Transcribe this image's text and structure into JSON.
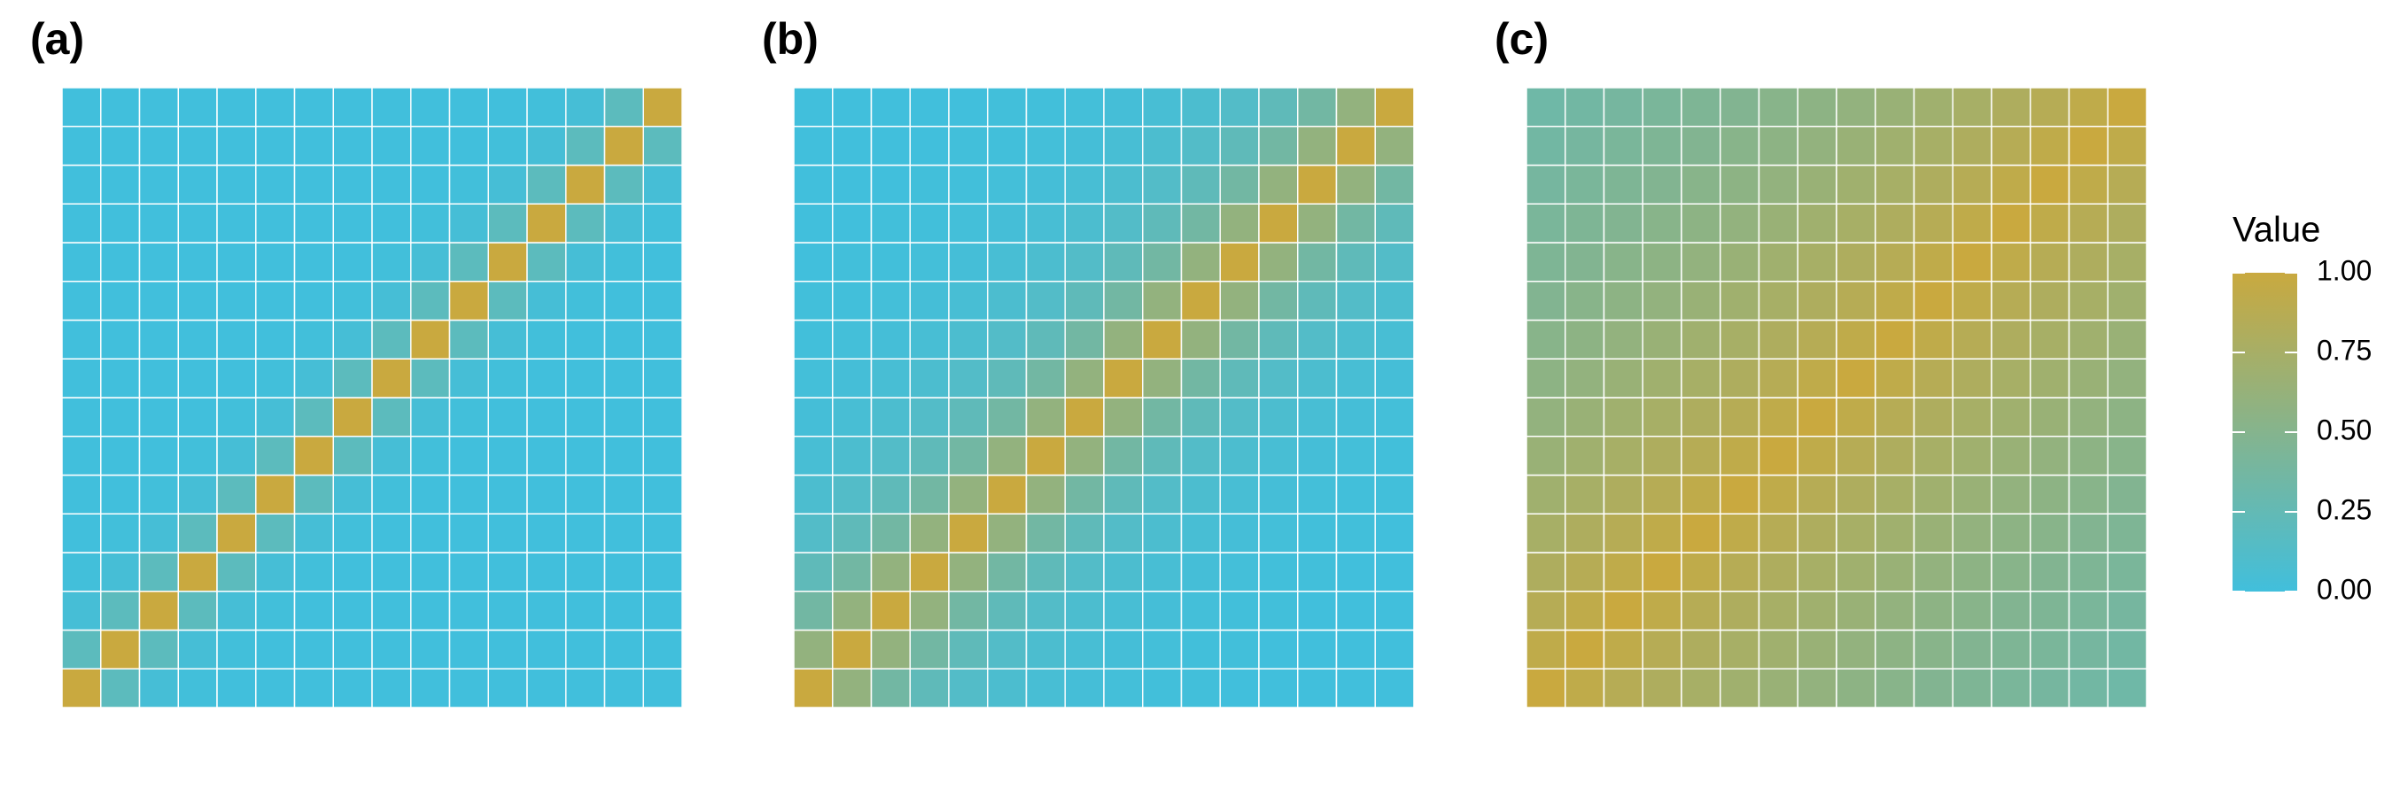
{
  "chart_data": [
    {
      "type": "heatmap",
      "title": "(a)",
      "z": [
        [
          1,
          0.2,
          0.04,
          0.01,
          0,
          0,
          0,
          0,
          0,
          0,
          0,
          0,
          0,
          0,
          0,
          0
        ],
        [
          0.2,
          1,
          0.2,
          0.04,
          0.01,
          0,
          0,
          0,
          0,
          0,
          0,
          0,
          0,
          0,
          0,
          0
        ],
        [
          0.04,
          0.2,
          1,
          0.2,
          0.04,
          0.01,
          0,
          0,
          0,
          0,
          0,
          0,
          0,
          0,
          0,
          0
        ],
        [
          0.01,
          0.04,
          0.2,
          1,
          0.2,
          0.04,
          0.01,
          0,
          0,
          0,
          0,
          0,
          0,
          0,
          0,
          0
        ],
        [
          0,
          0.01,
          0.04,
          0.2,
          1,
          0.2,
          0.04,
          0.01,
          0,
          0,
          0,
          0,
          0,
          0,
          0,
          0
        ],
        [
          0,
          0,
          0.01,
          0.04,
          0.2,
          1,
          0.2,
          0.04,
          0.01,
          0,
          0,
          0,
          0,
          0,
          0,
          0
        ],
        [
          0,
          0,
          0,
          0.01,
          0.04,
          0.2,
          1,
          0.2,
          0.04,
          0.01,
          0,
          0,
          0,
          0,
          0,
          0
        ],
        [
          0,
          0,
          0,
          0,
          0.01,
          0.04,
          0.2,
          1,
          0.2,
          0.04,
          0.01,
          0,
          0,
          0,
          0,
          0
        ],
        [
          0,
          0,
          0,
          0,
          0,
          0.01,
          0.04,
          0.2,
          1,
          0.2,
          0.04,
          0.01,
          0,
          0,
          0,
          0
        ],
        [
          0,
          0,
          0,
          0,
          0,
          0,
          0.01,
          0.04,
          0.2,
          1,
          0.2,
          0.04,
          0.01,
          0,
          0,
          0
        ],
        [
          0,
          0,
          0,
          0,
          0,
          0,
          0,
          0.01,
          0.04,
          0.2,
          1,
          0.2,
          0.04,
          0.01,
          0,
          0
        ],
        [
          0,
          0,
          0,
          0,
          0,
          0,
          0,
          0,
          0.01,
          0.04,
          0.2,
          1,
          0.2,
          0.04,
          0.01,
          0
        ],
        [
          0,
          0,
          0,
          0,
          0,
          0,
          0,
          0,
          0,
          0.01,
          0.04,
          0.2,
          1,
          0.2,
          0.04,
          0.01
        ],
        [
          0,
          0,
          0,
          0,
          0,
          0,
          0,
          0,
          0,
          0,
          0.01,
          0.04,
          0.2,
          1,
          0.2,
          0.04
        ],
        [
          0,
          0,
          0,
          0,
          0,
          0,
          0,
          0,
          0,
          0,
          0,
          0.01,
          0.04,
          0.2,
          1,
          0.2
        ],
        [
          0,
          0,
          0,
          0,
          0,
          0,
          0,
          0,
          0,
          0,
          0,
          0,
          0.01,
          0.04,
          0.2,
          1
        ]
      ]
    },
    {
      "type": "heatmap",
      "title": "(b)",
      "z": [
        [
          1,
          0.6,
          0.36,
          0.22,
          0.13,
          0.08,
          0.05,
          0.03,
          0.02,
          0.01,
          0.01,
          0,
          0,
          0,
          0,
          0
        ],
        [
          0.6,
          1,
          0.6,
          0.36,
          0.22,
          0.13,
          0.08,
          0.05,
          0.03,
          0.02,
          0.01,
          0.01,
          0,
          0,
          0,
          0
        ],
        [
          0.36,
          0.6,
          1,
          0.6,
          0.36,
          0.22,
          0.13,
          0.08,
          0.05,
          0.03,
          0.02,
          0.01,
          0.01,
          0,
          0,
          0
        ],
        [
          0.22,
          0.36,
          0.6,
          1,
          0.6,
          0.36,
          0.22,
          0.13,
          0.08,
          0.05,
          0.03,
          0.02,
          0.01,
          0.01,
          0,
          0
        ],
        [
          0.13,
          0.22,
          0.36,
          0.6,
          1,
          0.6,
          0.36,
          0.22,
          0.13,
          0.08,
          0.05,
          0.03,
          0.02,
          0.01,
          0.01,
          0
        ],
        [
          0.08,
          0.13,
          0.22,
          0.36,
          0.6,
          1,
          0.6,
          0.36,
          0.22,
          0.13,
          0.08,
          0.05,
          0.03,
          0.02,
          0.01,
          0.01
        ],
        [
          0.05,
          0.08,
          0.13,
          0.22,
          0.36,
          0.6,
          1,
          0.6,
          0.36,
          0.22,
          0.13,
          0.08,
          0.05,
          0.03,
          0.02,
          0.01
        ],
        [
          0.03,
          0.05,
          0.08,
          0.13,
          0.22,
          0.36,
          0.6,
          1,
          0.6,
          0.36,
          0.22,
          0.13,
          0.08,
          0.05,
          0.03,
          0.02
        ],
        [
          0.02,
          0.03,
          0.05,
          0.08,
          0.13,
          0.22,
          0.36,
          0.6,
          1,
          0.6,
          0.36,
          0.22,
          0.13,
          0.08,
          0.05,
          0.03
        ],
        [
          0.01,
          0.02,
          0.03,
          0.05,
          0.08,
          0.13,
          0.22,
          0.36,
          0.6,
          1,
          0.6,
          0.36,
          0.22,
          0.13,
          0.08,
          0.05
        ],
        [
          0.01,
          0.01,
          0.02,
          0.03,
          0.05,
          0.08,
          0.13,
          0.22,
          0.36,
          0.6,
          1,
          0.6,
          0.36,
          0.22,
          0.13,
          0.08
        ],
        [
          0,
          0.01,
          0.01,
          0.02,
          0.03,
          0.05,
          0.08,
          0.13,
          0.22,
          0.36,
          0.6,
          1,
          0.6,
          0.36,
          0.22,
          0.13
        ],
        [
          0,
          0,
          0.01,
          0.01,
          0.02,
          0.03,
          0.05,
          0.08,
          0.13,
          0.22,
          0.36,
          0.6,
          1,
          0.6,
          0.36,
          0.22
        ],
        [
          0,
          0,
          0,
          0.01,
          0.01,
          0.02,
          0.03,
          0.05,
          0.08,
          0.13,
          0.22,
          0.36,
          0.6,
          1,
          0.6,
          0.36
        ],
        [
          0,
          0,
          0,
          0,
          0.01,
          0.01,
          0.02,
          0.03,
          0.05,
          0.08,
          0.13,
          0.22,
          0.36,
          0.6,
          1,
          0.6
        ],
        [
          0,
          0,
          0,
          0,
          0,
          0.01,
          0.01,
          0.02,
          0.03,
          0.05,
          0.08,
          0.13,
          0.22,
          0.36,
          0.6,
          1
        ]
      ]
    },
    {
      "type": "heatmap",
      "title": "(c)",
      "z": [
        [
          1,
          0.93,
          0.86,
          0.8,
          0.75,
          0.7,
          0.65,
          0.6,
          0.56,
          0.52,
          0.48,
          0.45,
          0.42,
          0.39,
          0.36,
          0.34
        ],
        [
          0.93,
          1,
          0.93,
          0.86,
          0.8,
          0.75,
          0.7,
          0.65,
          0.6,
          0.56,
          0.52,
          0.48,
          0.45,
          0.42,
          0.39,
          0.36
        ],
        [
          0.86,
          0.93,
          1,
          0.93,
          0.86,
          0.8,
          0.75,
          0.7,
          0.65,
          0.6,
          0.56,
          0.52,
          0.48,
          0.45,
          0.42,
          0.39
        ],
        [
          0.8,
          0.86,
          0.93,
          1,
          0.93,
          0.86,
          0.8,
          0.75,
          0.7,
          0.65,
          0.6,
          0.56,
          0.52,
          0.48,
          0.45,
          0.42
        ],
        [
          0.75,
          0.8,
          0.86,
          0.93,
          1,
          0.93,
          0.86,
          0.8,
          0.75,
          0.7,
          0.65,
          0.6,
          0.56,
          0.52,
          0.48,
          0.45
        ],
        [
          0.7,
          0.75,
          0.8,
          0.86,
          0.93,
          1,
          0.93,
          0.86,
          0.8,
          0.75,
          0.7,
          0.65,
          0.6,
          0.56,
          0.52,
          0.48
        ],
        [
          0.65,
          0.7,
          0.75,
          0.8,
          0.86,
          0.93,
          1,
          0.93,
          0.86,
          0.8,
          0.75,
          0.7,
          0.65,
          0.6,
          0.56,
          0.52
        ],
        [
          0.6,
          0.65,
          0.7,
          0.75,
          0.8,
          0.86,
          0.93,
          1,
          0.93,
          0.86,
          0.8,
          0.75,
          0.7,
          0.65,
          0.6,
          0.56
        ],
        [
          0.56,
          0.6,
          0.65,
          0.7,
          0.75,
          0.8,
          0.86,
          0.93,
          1,
          0.93,
          0.86,
          0.8,
          0.75,
          0.7,
          0.65,
          0.6
        ],
        [
          0.52,
          0.56,
          0.6,
          0.65,
          0.7,
          0.75,
          0.8,
          0.86,
          0.93,
          1,
          0.93,
          0.86,
          0.8,
          0.75,
          0.7,
          0.65
        ],
        [
          0.48,
          0.52,
          0.56,
          0.6,
          0.65,
          0.7,
          0.75,
          0.8,
          0.86,
          0.93,
          1,
          0.93,
          0.86,
          0.8,
          0.75,
          0.7
        ],
        [
          0.45,
          0.48,
          0.52,
          0.56,
          0.6,
          0.65,
          0.7,
          0.75,
          0.8,
          0.86,
          0.93,
          1,
          0.93,
          0.86,
          0.8,
          0.75
        ],
        [
          0.42,
          0.45,
          0.48,
          0.52,
          0.56,
          0.6,
          0.65,
          0.7,
          0.75,
          0.8,
          0.86,
          0.93,
          1,
          0.93,
          0.86,
          0.8
        ],
        [
          0.39,
          0.42,
          0.45,
          0.48,
          0.52,
          0.56,
          0.6,
          0.65,
          0.7,
          0.75,
          0.8,
          0.86,
          0.93,
          1,
          0.93,
          0.86
        ],
        [
          0.36,
          0.39,
          0.42,
          0.45,
          0.48,
          0.52,
          0.56,
          0.6,
          0.65,
          0.7,
          0.75,
          0.8,
          0.86,
          0.93,
          1,
          0.93
        ],
        [
          0.34,
          0.36,
          0.39,
          0.42,
          0.45,
          0.48,
          0.52,
          0.56,
          0.6,
          0.65,
          0.7,
          0.75,
          0.8,
          0.86,
          0.93,
          1
        ]
      ]
    }
  ],
  "colorbar": {
    "title": "Value",
    "zlim": [
      0,
      1
    ],
    "colors": [
      "#41bfdc",
      "#c9a93f"
    ],
    "ticks": [
      {
        "value": 0,
        "label": "0.00"
      },
      {
        "value": 0.25,
        "label": "0.25"
      },
      {
        "value": 0.5,
        "label": "0.50"
      },
      {
        "value": 0.75,
        "label": "0.75"
      },
      {
        "value": 1,
        "label": "1.00"
      }
    ]
  }
}
